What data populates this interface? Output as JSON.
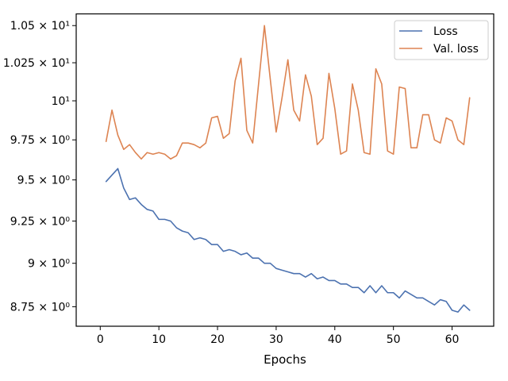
{
  "chart_data": {
    "type": "line",
    "xlabel": "Epochs",
    "ylabel": "",
    "xlim": [
      -4.1,
      67.1
    ],
    "ylim": [
      8.64,
      10.58
    ],
    "y_scale": "log",
    "x_ticks": [
      0,
      10,
      20,
      30,
      40,
      50,
      60
    ],
    "y_ticks": [
      {
        "value": 8.75,
        "label": "8.75 × 10⁰"
      },
      {
        "value": 9.0,
        "label": "9 × 10⁰"
      },
      {
        "value": 9.25,
        "label": "9.25 × 10⁰"
      },
      {
        "value": 9.5,
        "label": "9.5 × 10⁰"
      },
      {
        "value": 9.75,
        "label": "9.75 × 10⁰"
      },
      {
        "value": 10.0,
        "label": "10¹"
      },
      {
        "value": 10.25,
        "label": "1.025 × 10¹"
      },
      {
        "value": 10.5,
        "label": "1.05 × 10¹"
      }
    ],
    "grid": false,
    "legend_position": "top-right",
    "x": [
      1,
      2,
      3,
      4,
      5,
      6,
      7,
      8,
      9,
      10,
      11,
      12,
      13,
      14,
      15,
      16,
      17,
      18,
      19,
      20,
      21,
      22,
      23,
      24,
      25,
      26,
      27,
      28,
      29,
      30,
      31,
      32,
      33,
      34,
      35,
      36,
      37,
      38,
      39,
      40,
      41,
      42,
      43,
      44,
      45,
      46,
      47,
      48,
      49,
      50,
      51,
      52,
      53,
      54,
      55,
      56,
      57,
      58,
      59,
      60,
      61,
      62,
      63
    ],
    "series": [
      {
        "name": "Loss",
        "color": "#4c72b0",
        "values": [
          9.49,
          9.53,
          9.57,
          9.45,
          9.38,
          9.39,
          9.35,
          9.32,
          9.31,
          9.26,
          9.26,
          9.25,
          9.21,
          9.19,
          9.18,
          9.14,
          9.15,
          9.14,
          9.11,
          9.11,
          9.07,
          9.08,
          9.07,
          9.05,
          9.06,
          9.03,
          9.03,
          9.0,
          9.0,
          8.97,
          8.96,
          8.95,
          8.94,
          8.94,
          8.92,
          8.94,
          8.91,
          8.92,
          8.9,
          8.9,
          8.88,
          8.88,
          8.86,
          8.86,
          8.83,
          8.87,
          8.83,
          8.87,
          8.83,
          8.83,
          8.8,
          8.84,
          8.82,
          8.8,
          8.8,
          8.78,
          8.76,
          8.79,
          8.78,
          8.73,
          8.72,
          8.76,
          8.73
        ]
      },
      {
        "name": "Val. loss",
        "color": "#dd8452",
        "values": [
          9.74,
          9.94,
          9.78,
          9.69,
          9.72,
          9.67,
          9.63,
          9.67,
          9.66,
          9.67,
          9.66,
          9.63,
          9.65,
          9.73,
          9.73,
          9.72,
          9.7,
          9.73,
          9.89,
          9.9,
          9.76,
          9.79,
          10.13,
          10.28,
          9.81,
          9.73,
          10.11,
          10.5,
          10.14,
          9.8,
          10.02,
          10.27,
          9.94,
          9.87,
          10.17,
          10.03,
          9.72,
          9.76,
          10.18,
          9.95,
          9.66,
          9.68,
          10.11,
          9.94,
          9.67,
          9.66,
          10.21,
          10.11,
          9.68,
          9.66,
          10.09,
          10.08,
          9.7,
          9.7,
          9.91,
          9.91,
          9.75,
          9.73,
          9.89,
          9.87,
          9.75,
          9.72,
          10.02
        ]
      }
    ]
  }
}
